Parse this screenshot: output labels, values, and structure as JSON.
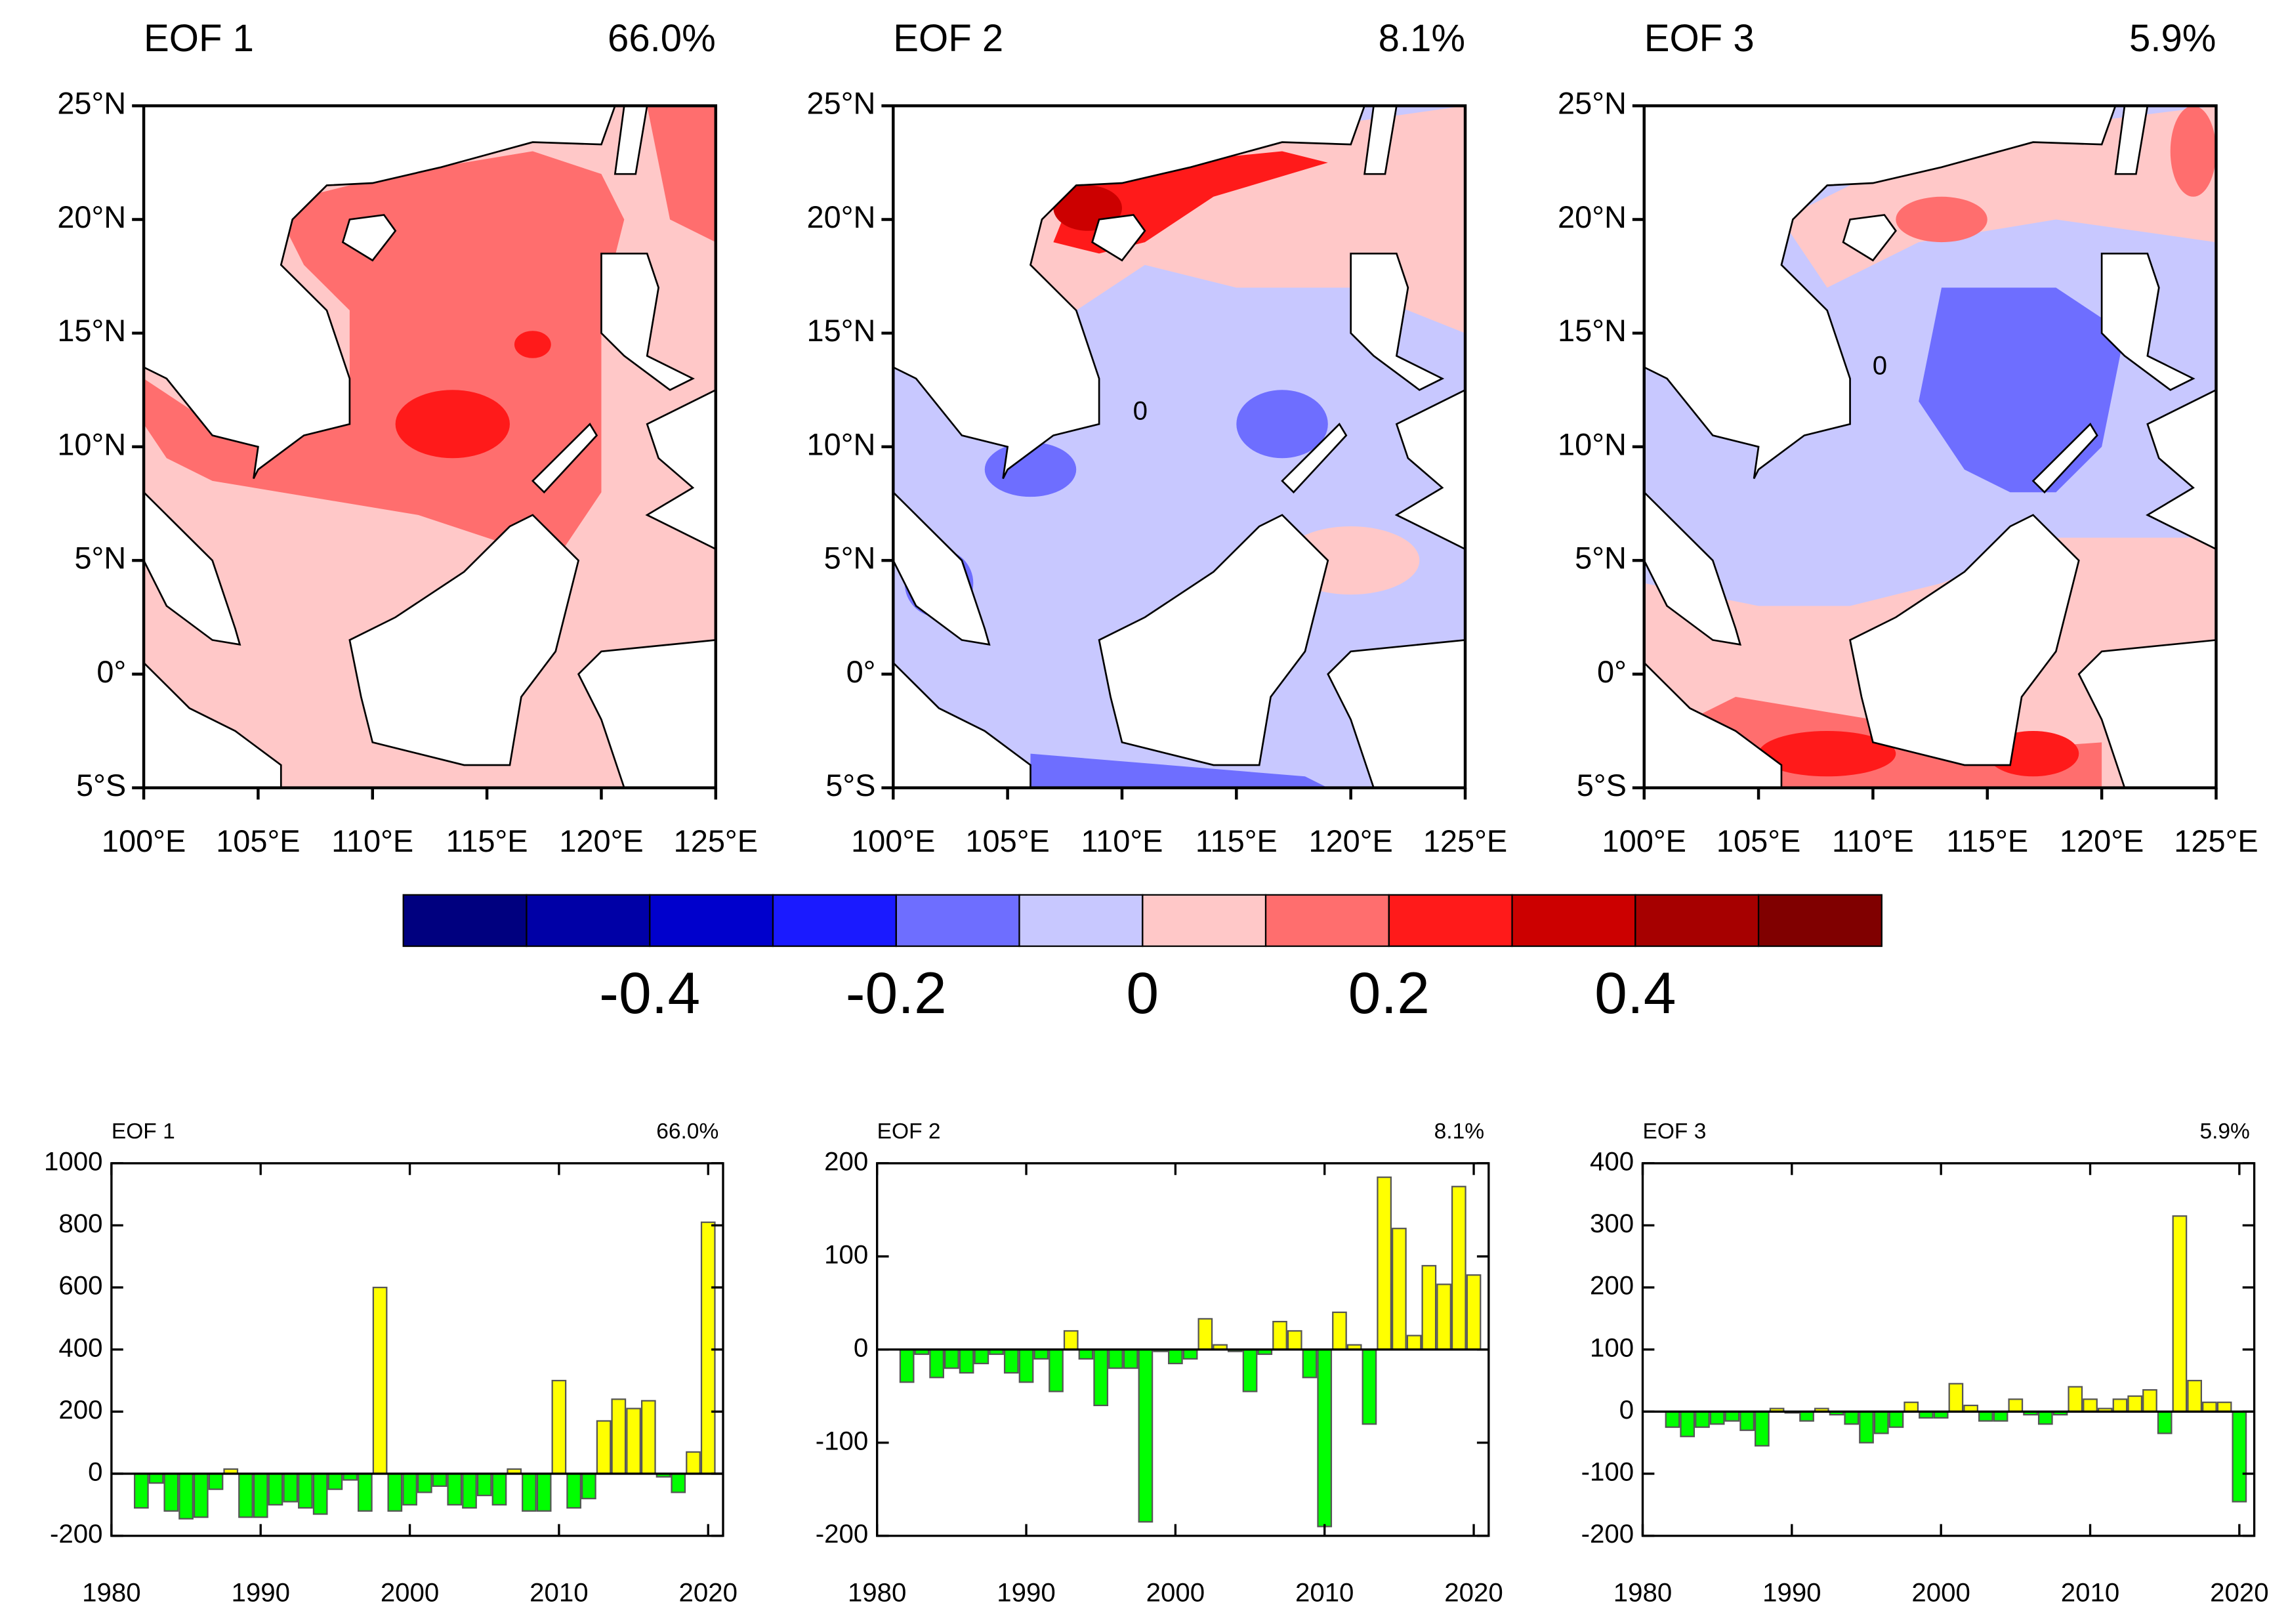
{
  "chart_data": [
    {
      "type": "map",
      "title": "EOF 1",
      "subtitle": "66.0%",
      "xlim": [
        100,
        125
      ],
      "ylim": [
        -5,
        25
      ],
      "xticks": [
        {
          "value": 100,
          "label": "100°E"
        },
        {
          "value": 105,
          "label": "105°E"
        },
        {
          "value": 110,
          "label": "110°E"
        },
        {
          "value": 115,
          "label": "115°E"
        },
        {
          "value": 120,
          "label": "120°E"
        },
        {
          "value": 125,
          "label": "125°E"
        }
      ],
      "yticks": [
        {
          "value": 25,
          "label": "25°N"
        },
        {
          "value": 20,
          "label": "20°N"
        },
        {
          "value": 15,
          "label": "15°N"
        },
        {
          "value": 10,
          "label": "10°N"
        },
        {
          "value": 5,
          "label": "5°N"
        },
        {
          "value": 0,
          "label": "0°"
        },
        {
          "value": -5,
          "label": "5°S"
        }
      ]
    },
    {
      "type": "map",
      "title": "EOF 2",
      "subtitle": "8.1%",
      "contour_label": "0",
      "xlim": [
        100,
        125
      ],
      "ylim": [
        -5,
        25
      ],
      "xticks": [
        {
          "value": 100,
          "label": "100°E"
        },
        {
          "value": 105,
          "label": "105°E"
        },
        {
          "value": 110,
          "label": "110°E"
        },
        {
          "value": 115,
          "label": "115°E"
        },
        {
          "value": 120,
          "label": "120°E"
        },
        {
          "value": 125,
          "label": "125°E"
        }
      ],
      "yticks": [
        {
          "value": 25,
          "label": "25°N"
        },
        {
          "value": 20,
          "label": "20°N"
        },
        {
          "value": 15,
          "label": "15°N"
        },
        {
          "value": 10,
          "label": "10°N"
        },
        {
          "value": 5,
          "label": "5°N"
        },
        {
          "value": 0,
          "label": "0°"
        },
        {
          "value": -5,
          "label": "5°S"
        }
      ]
    },
    {
      "type": "map",
      "title": "EOF 3",
      "subtitle": "5.9%",
      "contour_label": "0",
      "xlim": [
        100,
        125
      ],
      "ylim": [
        -5,
        25
      ],
      "xticks": [
        {
          "value": 100,
          "label": "100°E"
        },
        {
          "value": 105,
          "label": "105°E"
        },
        {
          "value": 110,
          "label": "110°E"
        },
        {
          "value": 115,
          "label": "115°E"
        },
        {
          "value": 120,
          "label": "120°E"
        },
        {
          "value": 125,
          "label": "125°E"
        }
      ],
      "yticks": [
        {
          "value": 25,
          "label": "25°N"
        },
        {
          "value": 20,
          "label": "20°N"
        },
        {
          "value": 15,
          "label": "15°N"
        },
        {
          "value": 10,
          "label": "10°N"
        },
        {
          "value": 5,
          "label": "5°N"
        },
        {
          "value": 0,
          "label": "0°"
        },
        {
          "value": -5,
          "label": "5°S"
        }
      ]
    },
    {
      "type": "colorbar",
      "lim": [
        -0.6,
        0.6
      ],
      "ticks": [
        -0.4,
        -0.2,
        0,
        0.2,
        0.4
      ],
      "colors": [
        "#00007f",
        "#0000a6",
        "#0000cc",
        "#1a1aff",
        "#6e6eff",
        "#c8c8ff",
        "#ffc8c8",
        "#ff6e6e",
        "#ff1a1a",
        "#cc0000",
        "#a60000",
        "#800000"
      ]
    },
    {
      "type": "bar",
      "title": "EOF 1",
      "subtitle": "66.0%",
      "positive_color": "#ffff00",
      "negative_color": "#00ff00",
      "x": [
        1982,
        1983,
        1984,
        1985,
        1986,
        1987,
        1988,
        1989,
        1990,
        1991,
        1992,
        1993,
        1994,
        1995,
        1996,
        1997,
        1998,
        1999,
        2000,
        2001,
        2002,
        2003,
        2004,
        2005,
        2006,
        2007,
        2008,
        2009,
        2010,
        2011,
        2012,
        2013,
        2014,
        2015,
        2016,
        2017,
        2018,
        2019,
        2020
      ],
      "values": [
        -110,
        -30,
        -120,
        -145,
        -140,
        -50,
        15,
        -140,
        -140,
        -100,
        -90,
        -110,
        -130,
        -50,
        -20,
        -120,
        600,
        -120,
        -100,
        -60,
        -40,
        -100,
        -110,
        -70,
        -100,
        15,
        -120,
        -120,
        300,
        -110,
        -80,
        170,
        240,
        210,
        235,
        -10,
        -60,
        70,
        810
      ],
      "xlim": [
        1980,
        2021
      ],
      "xticks": [
        1980,
        1990,
        2000,
        2010,
        2020
      ],
      "ylim": [
        -200,
        1000
      ],
      "yticks": [
        -200,
        0,
        200,
        400,
        600,
        800,
        1000
      ]
    },
    {
      "type": "bar",
      "title": "EOF 2",
      "subtitle": "8.1%",
      "positive_color": "#ffff00",
      "negative_color": "#00ff00",
      "x": [
        1982,
        1983,
        1984,
        1985,
        1986,
        1987,
        1988,
        1989,
        1990,
        1991,
        1992,
        1993,
        1994,
        1995,
        1996,
        1997,
        1998,
        1999,
        2000,
        2001,
        2002,
        2003,
        2004,
        2005,
        2006,
        2007,
        2008,
        2009,
        2010,
        2011,
        2012,
        2013,
        2014,
        2015,
        2016,
        2017,
        2018,
        2019,
        2020
      ],
      "values": [
        -35,
        -5,
        -30,
        -20,
        -25,
        -15,
        -5,
        -25,
        -35,
        -10,
        -45,
        20,
        -10,
        -60,
        -20,
        -20,
        -185,
        -2,
        -15,
        -10,
        33,
        5,
        -2,
        -45,
        -5,
        30,
        20,
        -30,
        -190,
        40,
        5,
        -80,
        185,
        130,
        15,
        90,
        70,
        175,
        80
      ],
      "xlim": [
        1980,
        2021
      ],
      "xticks": [
        1980,
        1990,
        2000,
        2010,
        2020
      ],
      "ylim": [
        -200,
        200
      ],
      "yticks": [
        -200,
        -100,
        0,
        100,
        200
      ]
    },
    {
      "type": "bar",
      "title": "EOF 3",
      "subtitle": "5.9%",
      "positive_color": "#ffff00",
      "negative_color": "#00ff00",
      "x": [
        1982,
        1983,
        1984,
        1985,
        1986,
        1987,
        1988,
        1989,
        1990,
        1991,
        1992,
        1993,
        1994,
        1995,
        1996,
        1997,
        1998,
        1999,
        2000,
        2001,
        2002,
        2003,
        2004,
        2005,
        2006,
        2007,
        2008,
        2009,
        2010,
        2011,
        2012,
        2013,
        2014,
        2015,
        2016,
        2017,
        2018,
        2019,
        2020
      ],
      "values": [
        -25,
        -40,
        -25,
        -20,
        -15,
        -30,
        -55,
        5,
        -2,
        -15,
        5,
        -5,
        -20,
        -50,
        -35,
        -25,
        15,
        -10,
        -10,
        45,
        10,
        -15,
        -15,
        20,
        -5,
        -20,
        -5,
        40,
        20,
        5,
        20,
        25,
        35,
        -35,
        315,
        50,
        15,
        15,
        -145
      ],
      "xlim": [
        1980,
        2021
      ],
      "xticks": [
        1980,
        1990,
        2000,
        2010,
        2020
      ],
      "ylim": [
        -200,
        400
      ],
      "yticks": [
        -200,
        -100,
        0,
        100,
        200,
        300,
        400
      ]
    }
  ]
}
